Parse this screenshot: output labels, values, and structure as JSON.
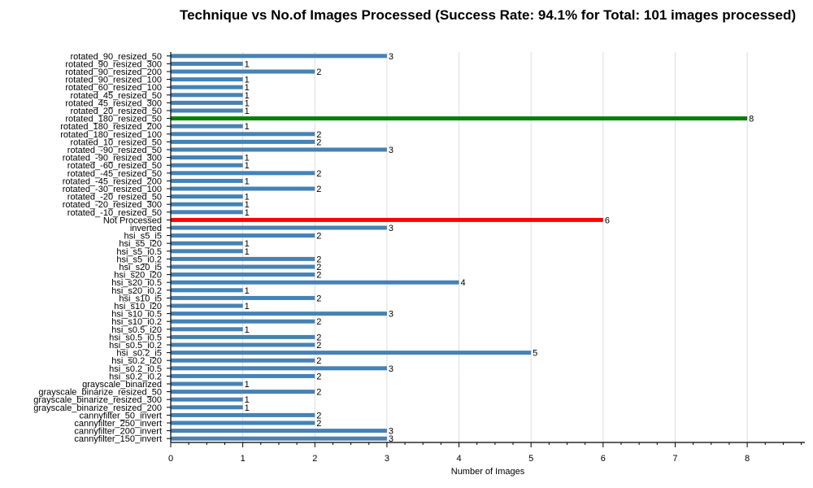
{
  "chart_data": {
    "type": "bar",
    "orientation": "horizontal",
    "title": "Technique vs No.of Images Processed (Success Rate: 94.1% for Total: 101 images processed)",
    "xlabel": "Number of Images",
    "ylabel": "",
    "xlim": [
      0,
      8.8
    ],
    "x_ticks": [
      "0",
      "1",
      "2",
      "3",
      "4",
      "5",
      "6",
      "7",
      "8"
    ],
    "grid": "vertical",
    "colors": {
      "default": "#4682b4",
      "Not Processed": "#ff0000",
      "rotated_180_resized_50": "#008000"
    },
    "categories": [
      "rotated_90_resized_50",
      "rotated_90_resized_300",
      "rotated_90_resized_200",
      "rotated_90_resized_100",
      "rotated_60_resized_100",
      "rotated_45_resized_50",
      "rotated_45_resized_300",
      "rotated_20_resized_50",
      "rotated_180_resized_50",
      "rotated_180_resized_200",
      "rotated_180_resized_100",
      "rotated_10_resized_50",
      "rotated_-90_resized_50",
      "rotated_-90_resized_300",
      "rotated_-60_resized_50",
      "rotated_-45_resized_50",
      "rotated_-45_resized_200",
      "rotated_-30_resized_100",
      "rotated_-20_resized_50",
      "rotated_-20_resized_300",
      "rotated_-10_resized_50",
      "Not Processed",
      "inverted",
      "hsi_s5_i5",
      "hsi_s5_i20",
      "hsi_s5_i0.5",
      "hsi_s5_i0.2",
      "hsi_s20_i5",
      "hsi_s20_i20",
      "hsi_s20_i0.5",
      "hsi_s20_i0.2",
      "hsi_s10_i5",
      "hsi_s10_i20",
      "hsi_s10_i0.5",
      "hsi_s10_i0.2",
      "hsi_s0.5_i20",
      "hsi_s0.5_i0.5",
      "hsi_s0.5_i0.2",
      "hsi_s0.2_i5",
      "hsi_s0.2_i20",
      "hsi_s0.2_i0.5",
      "hsi_s0.2_i0.2",
      "grayscale_binarized",
      "grayscale_binarize_resized_50",
      "grayscale_binarize_resized_300",
      "grayscale_binarize_resized_200",
      "cannyfilter_50_invert",
      "cannyfilter_250_invert",
      "cannyfilter_200_invert",
      "cannyfilter_150_invert"
    ],
    "values": [
      3,
      1,
      2,
      1,
      1,
      1,
      1,
      1,
      8,
      1,
      2,
      2,
      3,
      1,
      1,
      2,
      1,
      2,
      1,
      1,
      1,
      6,
      3,
      2,
      1,
      1,
      2,
      2,
      2,
      4,
      1,
      2,
      1,
      3,
      2,
      1,
      2,
      2,
      5,
      2,
      3,
      2,
      1,
      2,
      1,
      1,
      2,
      2,
      3,
      3
    ]
  }
}
